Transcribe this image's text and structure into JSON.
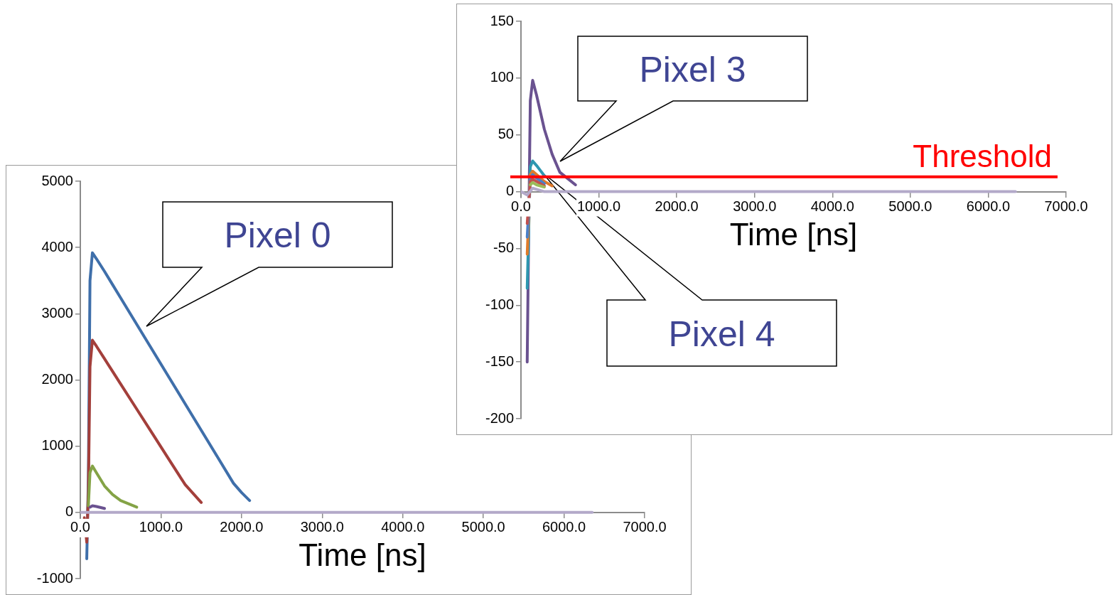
{
  "chart_data": [
    {
      "type": "line",
      "xlabel": "Time [ns]",
      "series": [
        {
          "color": "#3f6faa",
          "x": [
            80,
            100,
            120,
            150,
            200,
            300,
            400,
            500,
            700,
            900,
            1100,
            1300,
            1500,
            1700,
            1900,
            2000,
            2100
          ],
          "values": [
            -700,
            500,
            3500,
            3920,
            3830,
            3640,
            3440,
            3240,
            2840,
            2440,
            2040,
            1640,
            1240,
            840,
            440,
            300,
            180
          ]
        },
        {
          "color": "#a33f3b",
          "x": [
            50,
            80,
            100,
            120,
            150,
            200,
            300,
            400,
            500,
            700,
            900,
            1100,
            1300,
            1500
          ],
          "values": [
            -80,
            -450,
            300,
            2200,
            2600,
            2510,
            2320,
            2130,
            1940,
            1560,
            1180,
            800,
            420,
            150
          ]
        },
        {
          "color": "#84a346",
          "x": [
            100,
            120,
            150,
            200,
            300,
            400,
            500,
            700
          ],
          "values": [
            100,
            600,
            700,
            600,
            400,
            270,
            180,
            80
          ]
        },
        {
          "color": "#6a5290",
          "x": [
            120,
            150,
            200,
            300
          ],
          "values": [
            80,
            100,
            90,
            60
          ]
        },
        {
          "color": "#b3a9c9",
          "x": [
            0,
            6350
          ],
          "values": [
            0,
            0
          ]
        }
      ],
      "xlim": [
        0,
        7000
      ],
      "xticks": [
        {
          "value": 0,
          "label": "0.0"
        },
        {
          "value": 1000,
          "label": "1000.0"
        },
        {
          "value": 2000,
          "label": "2000.0"
        },
        {
          "value": 3000,
          "label": "3000.0"
        },
        {
          "value": 4000,
          "label": "4000.0"
        },
        {
          "value": 5000,
          "label": "5000.0"
        },
        {
          "value": 6000,
          "label": "6000.0"
        },
        {
          "value": 7000,
          "label": "7000.0"
        }
      ],
      "ylim": [
        -1000,
        5000
      ],
      "yticks": [
        -1000,
        0,
        1000,
        2000,
        3000,
        4000,
        5000
      ],
      "grid": false,
      "legend": false,
      "marker": "none",
      "annotations": [
        "Pixel 0"
      ]
    },
    {
      "type": "line",
      "xlabel": "Time [ns]",
      "series": [
        {
          "color": "#6a5290",
          "x": [
            80,
            100,
            120,
            150,
            200,
            300,
            400,
            500,
            700
          ],
          "values": [
            -150,
            -30,
            80,
            98,
            85,
            55,
            33,
            17,
            6
          ]
        },
        {
          "color": "#2e97b0",
          "x": [
            80,
            120,
            150,
            200,
            300
          ],
          "values": [
            -85,
            22,
            27,
            23,
            14
          ]
        },
        {
          "color": "#e07b2a",
          "x": [
            80,
            120,
            150,
            200,
            300,
            400
          ],
          "values": [
            -55,
            15,
            18,
            15,
            9,
            5
          ]
        },
        {
          "color": "#4a80c8",
          "x": [
            80,
            120,
            150,
            200,
            300
          ],
          "values": [
            -40,
            12,
            15,
            12,
            7
          ]
        },
        {
          "color": "#c0504d",
          "x": [
            80,
            120,
            150,
            200,
            300
          ],
          "values": [
            -28,
            9,
            11,
            9,
            5
          ]
        },
        {
          "color": "#9bbb59",
          "x": [
            120,
            150,
            200,
            300
          ],
          "values": [
            6,
            8,
            6,
            4
          ]
        },
        {
          "color": "#b3a9c9",
          "x": [
            0,
            80,
            150,
            300,
            6350
          ],
          "values": [
            0,
            -3,
            3,
            0,
            0
          ]
        }
      ],
      "xlim": [
        0,
        7000
      ],
      "xticks": [
        {
          "value": 0,
          "label": "0.0"
        },
        {
          "value": 1000,
          "label": "1000.0"
        },
        {
          "value": 2000,
          "label": "2000.0"
        },
        {
          "value": 3000,
          "label": "3000.0"
        },
        {
          "value": 4000,
          "label": "4000.0"
        },
        {
          "value": 5000,
          "label": "5000.0"
        },
        {
          "value": 6000,
          "label": "6000.0"
        },
        {
          "value": 7000,
          "label": "7000.0"
        }
      ],
      "ylim": [
        -200,
        150
      ],
      "yticks": [
        -200,
        -150,
        -100,
        -50,
        0,
        50,
        100,
        150
      ],
      "grid": false,
      "legend": false,
      "marker": "none",
      "ref_lines": [
        {
          "axis": "y",
          "value": 13,
          "label": "Threshold",
          "color": "#ff0000"
        }
      ],
      "annotations": [
        "Pixel 3",
        "Pixel 4"
      ]
    }
  ]
}
